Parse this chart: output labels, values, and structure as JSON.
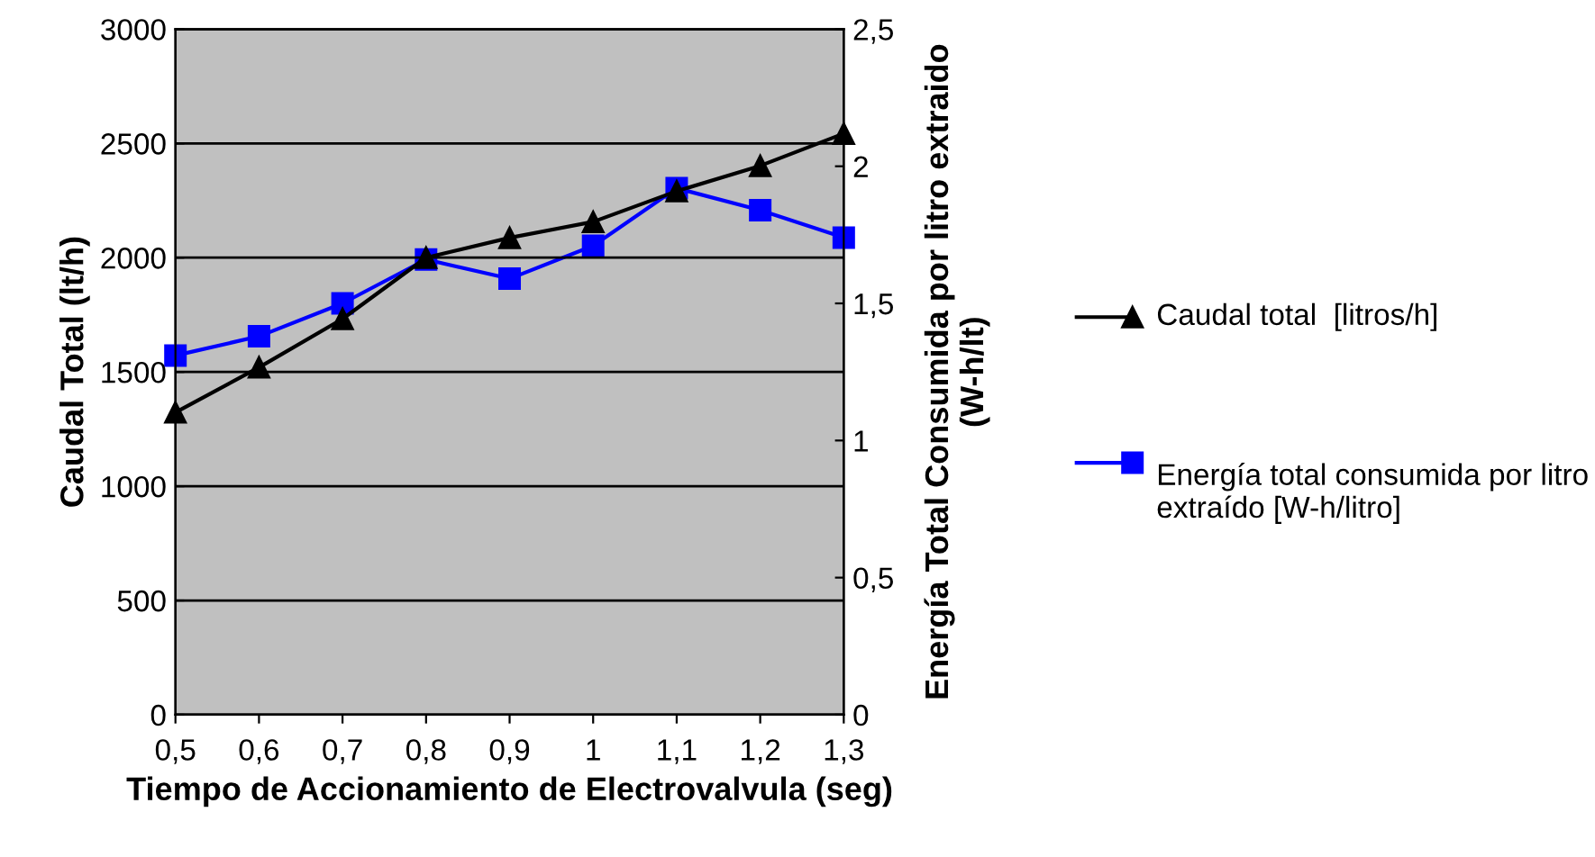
{
  "chart_data": {
    "type": "line",
    "xlabel": "Tiempo de Accionamiento de Electrovalvula (seg)",
    "ylabel": "Caudal Total (lt/h)",
    "y2label": "Energía Total Consumida por litro extraido (W-h/lt)",
    "x": [
      0.5,
      0.6,
      0.7,
      0.8,
      0.9,
      1.0,
      1.1,
      1.2,
      1.3
    ],
    "xlim": [
      0.5,
      1.3
    ],
    "xticks": [
      {
        "value": 0.5,
        "label": "0,5"
      },
      {
        "value": 0.6,
        "label": "0,6"
      },
      {
        "value": 0.7,
        "label": "0,7"
      },
      {
        "value": 0.8,
        "label": "0,8"
      },
      {
        "value": 0.9,
        "label": "0,9"
      },
      1,
      {
        "value": 1.1,
        "label": "1,1"
      },
      {
        "value": 1.2,
        "label": "1,2"
      },
      {
        "value": 1.3,
        "label": "1,3"
      }
    ],
    "ylim": [
      0,
      3000
    ],
    "yticks": [
      0,
      500,
      1000,
      1500,
      2000,
      2500,
      3000
    ],
    "y2lim": [
      0,
      2.5
    ],
    "y2ticks": [
      0,
      {
        "value": 0.5,
        "label": "0,5"
      },
      1,
      {
        "value": 1.5,
        "label": "1,5"
      },
      2,
      {
        "value": 2.5,
        "label": "2,5"
      }
    ],
    "grid": "y",
    "legend": "right",
    "series": [
      {
        "name": "Caudal total  [litros/h]",
        "color": "#000000",
        "marker": "triangle",
        "values": [
          1323,
          1520,
          1732,
          2000,
          2087,
          2157,
          2291,
          2402,
          2543
        ]
      },
      {
        "name": "Energía total consumida por litro extraído [W-h/litro]",
        "color": "#0000ff",
        "marker": "square",
        "axis": "y2",
        "values": [
          1.31,
          1.38,
          1.5,
          1.66,
          1.59,
          1.71,
          1.92,
          1.84,
          1.74
        ]
      }
    ]
  }
}
